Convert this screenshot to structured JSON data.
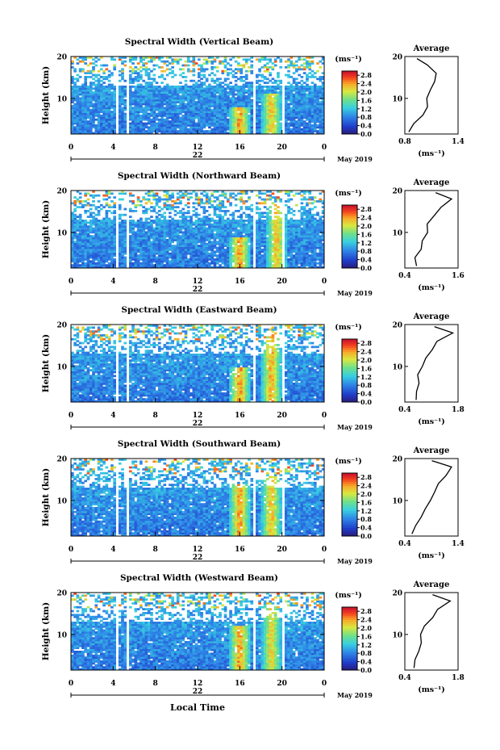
{
  "figure": {
    "xlabel": "Local Time",
    "month_label": "May 2019",
    "day_label": "22",
    "cbar_unit": "(ms⁻¹)",
    "avg_unit": "(ms⁻¹)",
    "avg_title": "Average"
  },
  "chart_data": [
    {
      "type": "heatmap",
      "title": "Spectral Width (Vertical Beam)",
      "ylabel": "Height (km)",
      "xlabel": "Local Time",
      "x_ticks": [
        "0",
        "4",
        "8",
        "12",
        "16",
        "20",
        "0"
      ],
      "xlim": [
        0,
        24
      ],
      "ylim": [
        1.5,
        20
      ],
      "y_ticks": [
        "20",
        "10"
      ],
      "colorbar": {
        "label": "(ms⁻¹)",
        "range": [
          0,
          3.0
        ],
        "ticks": [
          "2.8",
          "2.4",
          "2.0",
          "1.6",
          "1.2",
          "0.8",
          "0.4",
          "0.0"
        ]
      },
      "gaps_hours": [
        [
          4.3,
          4.5
        ],
        [
          5.2,
          5.4
        ],
        [
          17.3,
          17.5
        ],
        [
          17.9,
          18.1
        ],
        [
          20.0,
          20.2
        ]
      ],
      "hotspots": [
        {
          "t": 16,
          "h_max": 8,
          "value": 2.8
        },
        {
          "t": 19,
          "h_max": 11,
          "value": 2.6
        }
      ],
      "average_profile": {
        "title": "Average",
        "xlabel": "(ms⁻¹)",
        "x_ticks": [
          "0.8",
          "1.4"
        ],
        "xlim": [
          0.8,
          1.4
        ],
        "y_ticks": [
          "20",
          "10"
        ],
        "heights": [
          2,
          4,
          6,
          8,
          10,
          12,
          14,
          16,
          18,
          19.5
        ],
        "values": [
          0.86,
          0.92,
          0.98,
          1.03,
          1.07,
          1.1,
          1.12,
          1.15,
          1.05,
          0.95
        ]
      }
    },
    {
      "type": "heatmap",
      "title": "Spectral Width (Northward Beam)",
      "ylabel": "Height (km)",
      "xlabel": "Local Time",
      "x_ticks": [
        "0",
        "4",
        "8",
        "12",
        "16",
        "20",
        "0"
      ],
      "xlim": [
        0,
        24
      ],
      "ylim": [
        1.5,
        20
      ],
      "y_ticks": [
        "20",
        "10"
      ],
      "colorbar": {
        "label": "(ms⁻¹)",
        "range": [
          0,
          3.0
        ],
        "ticks": [
          "2.8",
          "2.4",
          "2.0",
          "1.6",
          "1.2",
          "0.8",
          "0.4",
          "0.0"
        ]
      },
      "gaps_hours": [
        [
          4.3,
          4.5
        ],
        [
          5.2,
          5.4
        ],
        [
          17.3,
          17.5
        ],
        [
          17.9,
          18.1
        ],
        [
          20.0,
          20.2
        ]
      ],
      "hotspots": [
        {
          "t": 16,
          "h_max": 9,
          "value": 2.8
        },
        {
          "t": 19.5,
          "h_max": 17,
          "value": 2.6
        }
      ],
      "average_profile": {
        "title": "Average",
        "xlabel": "(ms⁻¹)",
        "x_ticks": [
          "0.4",
          "1.6"
        ],
        "xlim": [
          0.4,
          1.6
        ],
        "y_ticks": [
          "20",
          "10"
        ],
        "heights": [
          2,
          4,
          6,
          8,
          10,
          12,
          14,
          16,
          18,
          19.5
        ],
        "values": [
          0.62,
          0.68,
          0.75,
          0.82,
          0.9,
          0.95,
          1.05,
          1.2,
          1.45,
          1.1
        ]
      }
    },
    {
      "type": "heatmap",
      "title": "Spectral Width (Eastward Beam)",
      "ylabel": "Height (km)",
      "xlabel": "Local Time",
      "x_ticks": [
        "0",
        "4",
        "8",
        "12",
        "16",
        "20",
        "0"
      ],
      "xlim": [
        0,
        24
      ],
      "ylim": [
        1.5,
        20
      ],
      "y_ticks": [
        "20",
        "10"
      ],
      "colorbar": {
        "label": "(ms⁻¹)",
        "range": [
          0,
          3.0
        ],
        "ticks": [
          "2.8",
          "2.4",
          "2.0",
          "1.6",
          "1.2",
          "0.8",
          "0.4",
          "0.0"
        ]
      },
      "gaps_hours": [
        [
          4.3,
          4.5
        ],
        [
          5.2,
          5.4
        ],
        [
          17.3,
          17.5
        ],
        [
          17.9,
          18.1
        ],
        [
          20.0,
          20.2
        ]
      ],
      "hotspots": [
        {
          "t": 16,
          "h_max": 10,
          "value": 2.8
        },
        {
          "t": 19,
          "h_max": 18,
          "value": 2.7
        }
      ],
      "average_profile": {
        "title": "Average",
        "xlabel": "(ms⁻¹)",
        "x_ticks": [
          "0.4",
          "1.8"
        ],
        "xlim": [
          0.4,
          1.8
        ],
        "y_ticks": [
          "20",
          "10"
        ],
        "heights": [
          2,
          4,
          6,
          8,
          10,
          12,
          14,
          16,
          18,
          19.5
        ],
        "values": [
          0.65,
          0.7,
          0.75,
          0.8,
          0.88,
          0.98,
          1.1,
          1.25,
          1.6,
          1.2
        ]
      }
    },
    {
      "type": "heatmap",
      "title": "Spectral Width (Southward Beam)",
      "ylabel": "Height (km)",
      "xlabel": "Local Time",
      "x_ticks": [
        "0",
        "4",
        "8",
        "12",
        "16",
        "20",
        "0"
      ],
      "xlim": [
        0,
        24
      ],
      "ylim": [
        1.5,
        20
      ],
      "y_ticks": [
        "20",
        "10"
      ],
      "colorbar": {
        "label": "(ms⁻¹)",
        "range": [
          0,
          3.0
        ],
        "ticks": [
          "2.8",
          "2.4",
          "2.0",
          "1.6",
          "1.2",
          "0.8",
          "0.4",
          "0.0"
        ]
      },
      "gaps_hours": [
        [
          4.3,
          4.5
        ],
        [
          5.2,
          5.4
        ],
        [
          17.3,
          17.5
        ],
        [
          17.9,
          18.1
        ],
        [
          20.0,
          20.2
        ]
      ],
      "hotspots": [
        {
          "t": 16,
          "h_max": 14,
          "value": 2.8
        },
        {
          "t": 19,
          "h_max": 16,
          "value": 2.6
        }
      ],
      "average_profile": {
        "title": "Average",
        "xlabel": "(ms⁻¹)",
        "x_ticks": [
          "0.4",
          "1.4"
        ],
        "xlim": [
          0.4,
          1.4
        ],
        "y_ticks": [
          "20",
          "10"
        ],
        "heights": [
          2,
          4,
          6,
          8,
          10,
          12,
          14,
          16,
          18,
          19.5
        ],
        "values": [
          0.55,
          0.62,
          0.7,
          0.78,
          0.85,
          0.95,
          1.05,
          1.15,
          1.25,
          0.9
        ]
      }
    },
    {
      "type": "heatmap",
      "title": "Spectral Width (Westward Beam)",
      "ylabel": "Height (km)",
      "xlabel": "Local Time",
      "x_ticks": [
        "0",
        "4",
        "8",
        "12",
        "16",
        "20",
        "0"
      ],
      "xlim": [
        0,
        24
      ],
      "ylim": [
        1.5,
        20
      ],
      "y_ticks": [
        "20",
        "10"
      ],
      "colorbar": {
        "label": "(ms⁻¹)",
        "range": [
          0,
          3.0
        ],
        "ticks": [
          "2.8",
          "2.4",
          "2.0",
          "1.6",
          "1.2",
          "0.8",
          "0.4",
          "0.0"
        ]
      },
      "gaps_hours": [
        [
          4.3,
          4.5
        ],
        [
          5.2,
          5.4
        ],
        [
          17.3,
          17.5
        ],
        [
          17.9,
          18.1
        ],
        [
          20.0,
          20.2
        ]
      ],
      "hotspots": [
        {
          "t": 16,
          "h_max": 12,
          "value": 2.8
        },
        {
          "t": 19,
          "h_max": 17,
          "value": 2.5
        }
      ],
      "average_profile": {
        "title": "Average",
        "xlabel": "(ms⁻¹)",
        "x_ticks": [
          "0.4",
          "1.8"
        ],
        "xlim": [
          0.4,
          1.8
        ],
        "y_ticks": [
          "20",
          "10"
        ],
        "heights": [
          2,
          4,
          6,
          8,
          10,
          12,
          14,
          16,
          18,
          19.5
        ],
        "values": [
          0.62,
          0.68,
          0.72,
          0.78,
          0.86,
          0.96,
          1.08,
          1.2,
          1.62,
          1.15
        ]
      }
    }
  ]
}
